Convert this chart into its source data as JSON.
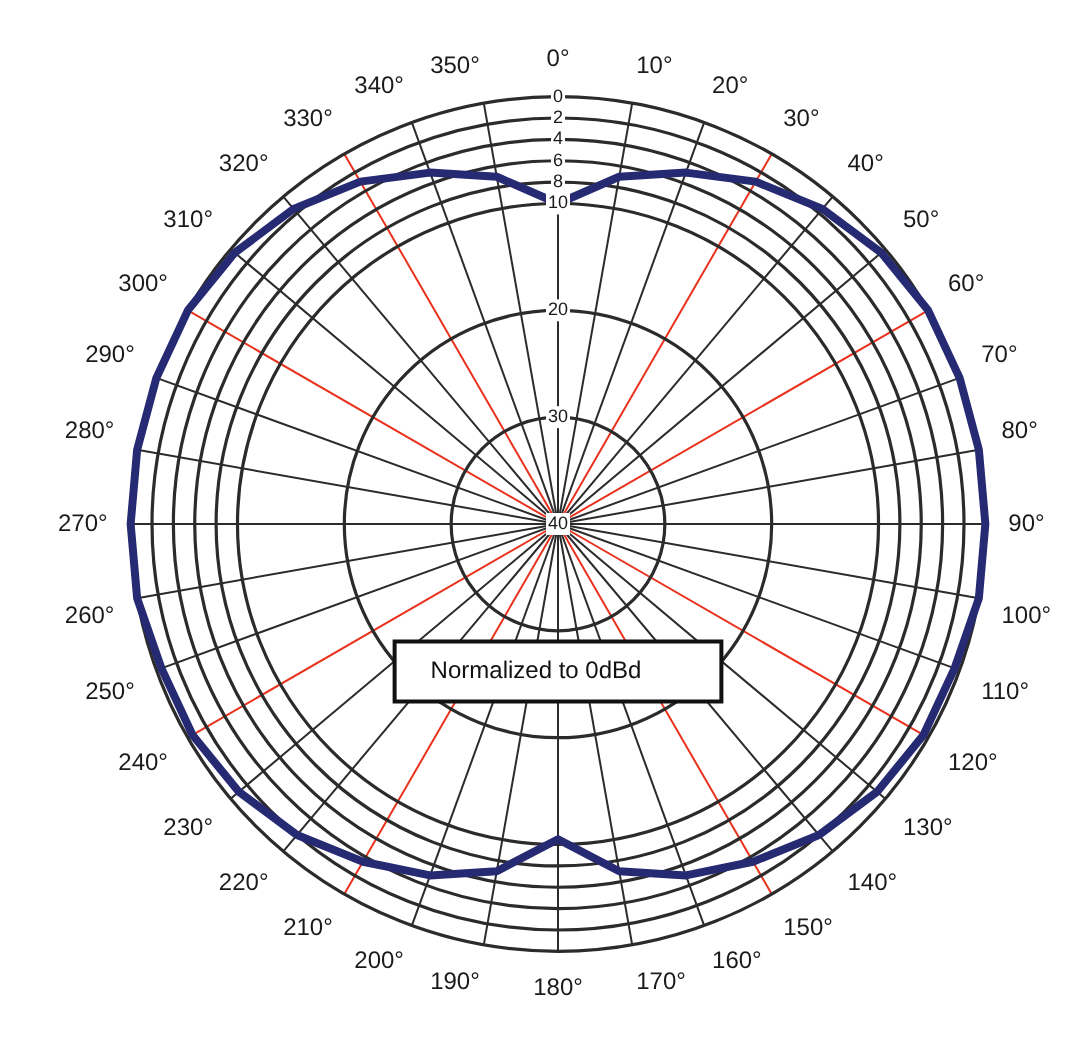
{
  "chart_data": {
    "type": "radar",
    "categories": [
      "0°",
      "10°",
      "20°",
      "30°",
      "40°",
      "50°",
      "60°",
      "70°",
      "80°",
      "90°",
      "100°",
      "110°",
      "120°",
      "130°",
      "140°",
      "150°",
      "160°",
      "170°",
      "180°",
      "190°",
      "200°",
      "210°",
      "220°",
      "230°",
      "240°",
      "250°",
      "260°",
      "270°",
      "280°",
      "290°",
      "300°",
      "310°",
      "320°",
      "330°",
      "340°",
      "350°"
    ],
    "series": [
      {
        "color": "#262a72",
        "values": [
          10,
          7,
          5,
          3,
          1.5,
          0.5,
          0,
          0,
          0,
          0,
          0,
          0.5,
          0.5,
          1,
          2,
          3.5,
          5,
          7,
          10.5,
          7,
          5,
          3.5,
          2,
          1,
          0.5,
          0.5,
          0,
          0,
          0,
          0,
          0,
          0.5,
          1.5,
          3,
          5,
          7
        ]
      }
    ],
    "ylim": [
      40,
      0
    ],
    "yticks": [
      0,
      2,
      4,
      6,
      8,
      10,
      20,
      30,
      40
    ],
    "grid": true,
    "annotations": [
      "Normalized to 0dBd"
    ]
  }
}
